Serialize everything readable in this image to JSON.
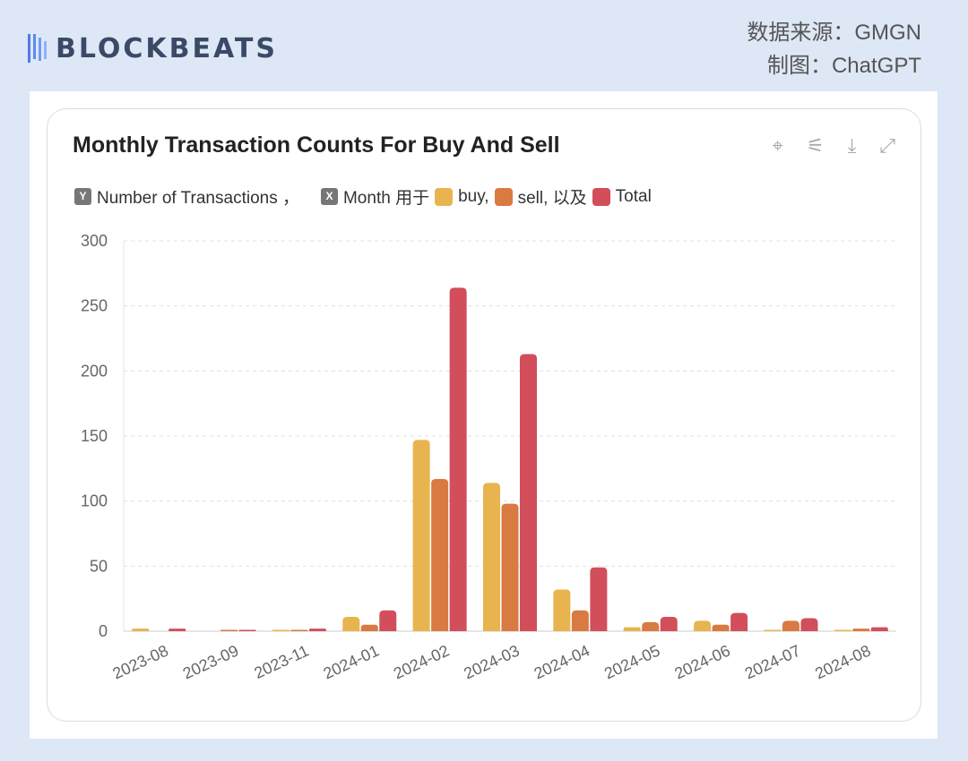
{
  "brand": {
    "logo_text": "BLOCKBEATS"
  },
  "source": {
    "line1": "数据来源：GMGN",
    "line2": "制图：ChatGPT"
  },
  "toolbar": {
    "icons": [
      "magic-select-icon",
      "sliders-icon",
      "download-icon",
      "expand-icon"
    ]
  },
  "legend": {
    "y_badge": "Y",
    "y_label": "Number of Transactions ，",
    "x_badge": "X",
    "x_label": "Month 用于",
    "buy": "buy,",
    "sell": "sell, 以及",
    "total": "Total"
  },
  "chart_data": {
    "type": "bar",
    "title": "Monthly Transaction Counts For Buy And Sell",
    "xlabel": "Month",
    "ylabel": "Number of Transactions",
    "ylim": [
      0,
      300
    ],
    "yticks": [
      0,
      50,
      100,
      150,
      200,
      250,
      300
    ],
    "grid": true,
    "legend_position": "top-left",
    "categories": [
      "2023-08",
      "2023-09",
      "2023-11",
      "2024-01",
      "2024-02",
      "2024-03",
      "2024-04",
      "2024-05",
      "2024-06",
      "2024-07",
      "2024-08"
    ],
    "series": [
      {
        "name": "buy",
        "color": "#E8B44F",
        "values": [
          2,
          0,
          1,
          11,
          147,
          114,
          32,
          3,
          8,
          1,
          1
        ]
      },
      {
        "name": "sell",
        "color": "#D97A42",
        "values": [
          0,
          1,
          1,
          5,
          117,
          98,
          16,
          7,
          5,
          8,
          2
        ]
      },
      {
        "name": "Total",
        "color": "#D24E5B",
        "values": [
          2,
          1,
          2,
          16,
          264,
          213,
          49,
          11,
          14,
          10,
          3
        ]
      }
    ]
  }
}
